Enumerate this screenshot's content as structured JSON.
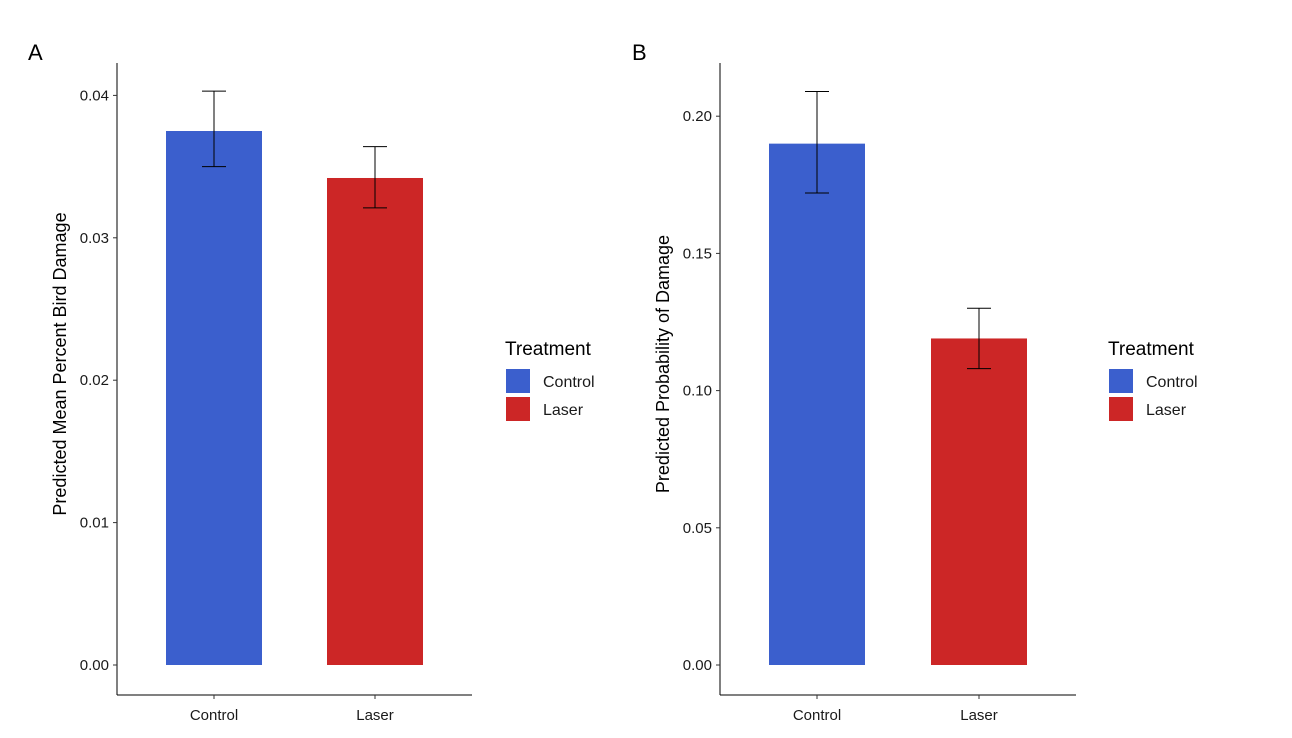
{
  "chart_data": [
    {
      "panel": "A",
      "type": "bar",
      "categories": [
        "Control",
        "Laser"
      ],
      "values": [
        0.0375,
        0.0342
      ],
      "error_lower": [
        0.035,
        0.0321
      ],
      "error_upper": [
        0.0403,
        0.0364
      ],
      "colors": [
        "#3b5fcd",
        "#cc2626"
      ],
      "ylabel": "Predicted Mean Percent Bird Damage",
      "xlabel": "",
      "ylim": [
        0,
        0.0422
      ],
      "yticks": [
        0.0,
        0.01,
        0.02,
        0.03,
        0.04
      ],
      "ytick_labels": [
        "0.00",
        "0.01",
        "0.02",
        "0.03",
        "0.04"
      ],
      "legend": {
        "title": "Treatment",
        "entries": [
          "Control",
          "Laser"
        ],
        "placement": "right"
      },
      "grid": false
    },
    {
      "panel": "B",
      "type": "bar",
      "categories": [
        "Control",
        "Laser"
      ],
      "values": [
        0.19,
        0.119
      ],
      "error_lower": [
        0.172,
        0.108
      ],
      "error_upper": [
        0.209,
        0.13
      ],
      "colors": [
        "#3b5fcd",
        "#cc2626"
      ],
      "ylabel": "Predicted Probability of Damage",
      "xlabel": "",
      "ylim": [
        0,
        0.22
      ],
      "yticks": [
        0.0,
        0.05,
        0.1,
        0.15,
        0.2
      ],
      "ytick_labels": [
        "0.00",
        "0.05",
        "0.10",
        "0.15",
        "0.20"
      ],
      "legend": {
        "title": "Treatment",
        "entries": [
          "Control",
          "Laser"
        ],
        "placement": "right"
      },
      "grid": false
    }
  ]
}
